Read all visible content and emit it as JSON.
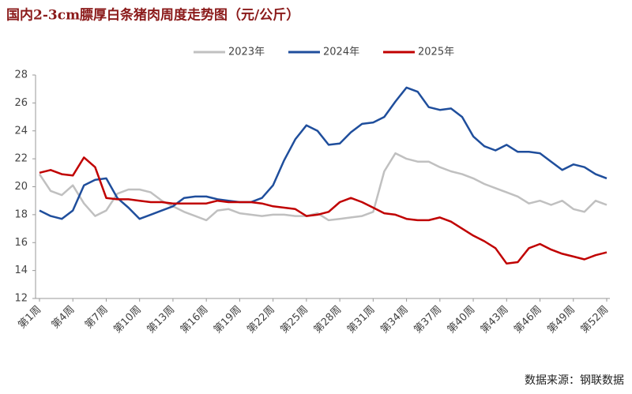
{
  "chart_data": {
    "type": "line",
    "title": "国内2-3cm膘厚白条猪肉周度走势图（元/公斤）",
    "source": "数据来源：钢联数据",
    "categories": [
      "第1周",
      null,
      null,
      "第4周",
      null,
      null,
      "第7周",
      null,
      null,
      "第10周",
      null,
      null,
      "第13周",
      null,
      null,
      "第16周",
      null,
      null,
      "第19周",
      null,
      null,
      "第22周",
      null,
      null,
      "第25周",
      null,
      null,
      "第28周",
      null,
      null,
      "第31周",
      null,
      null,
      "第34周",
      null,
      null,
      "第37周",
      null,
      null,
      "第40周",
      null,
      null,
      "第43周",
      null,
      null,
      "第46周",
      null,
      null,
      "第49周",
      null,
      null,
      "第52周"
    ],
    "series": [
      {
        "name": "2023年",
        "color": "#c0c0c0",
        "values": [
          20.9,
          19.7,
          19.4,
          20.1,
          18.8,
          17.9,
          18.3,
          19.5,
          19.8,
          19.8,
          19.6,
          19.0,
          18.6,
          18.2,
          17.9,
          17.6,
          18.3,
          18.4,
          18.1,
          18.0,
          17.9,
          18.0,
          18.0,
          17.9,
          17.9,
          18.1,
          17.6,
          17.7,
          17.8,
          17.9,
          18.2,
          21.1,
          22.4,
          22.0,
          21.8,
          21.8,
          21.4,
          21.1,
          20.9,
          20.6,
          20.2,
          19.9,
          19.6,
          19.3,
          18.8,
          19.0,
          18.7,
          19.0,
          18.4,
          18.2,
          19.0,
          18.7
        ]
      },
      {
        "name": "2024年",
        "color": "#1f4e9c",
        "values": [
          18.3,
          17.9,
          17.7,
          18.3,
          20.1,
          20.5,
          20.6,
          19.2,
          18.5,
          17.7,
          18.0,
          18.3,
          18.6,
          19.2,
          19.3,
          19.3,
          19.1,
          19.0,
          18.9,
          18.9,
          19.2,
          20.1,
          21.9,
          23.4,
          24.4,
          24.0,
          23.0,
          23.1,
          23.9,
          24.5,
          24.6,
          25.0,
          26.1,
          27.1,
          26.8,
          25.7,
          25.5,
          25.6,
          25.0,
          23.6,
          22.9,
          22.6,
          23.0,
          22.5,
          22.5,
          22.4,
          21.8,
          21.2,
          21.6,
          21.4,
          20.9,
          20.6
        ]
      },
      {
        "name": "2025年",
        "color": "#c00000",
        "values": [
          21.0,
          21.2,
          20.9,
          20.8,
          22.1,
          21.4,
          19.2,
          19.1,
          19.1,
          19.0,
          18.9,
          18.9,
          18.8,
          18.8,
          18.8,
          18.8,
          19.0,
          18.9,
          18.9,
          18.9,
          18.8,
          18.6,
          18.5,
          18.4,
          17.9,
          18.0,
          18.2,
          18.9,
          19.2,
          18.9,
          18.5,
          18.1,
          18.0,
          17.7,
          17.6,
          17.6,
          17.8,
          17.5,
          17.0,
          16.5,
          16.1,
          15.6,
          14.5,
          14.6,
          15.6,
          15.9,
          15.5,
          15.2,
          15.0,
          14.8,
          15.1,
          15.3
        ]
      }
    ],
    "ylim": [
      12,
      28
    ],
    "yticks": [
      12,
      14,
      16,
      18,
      20,
      22,
      24,
      26,
      28
    ]
  }
}
